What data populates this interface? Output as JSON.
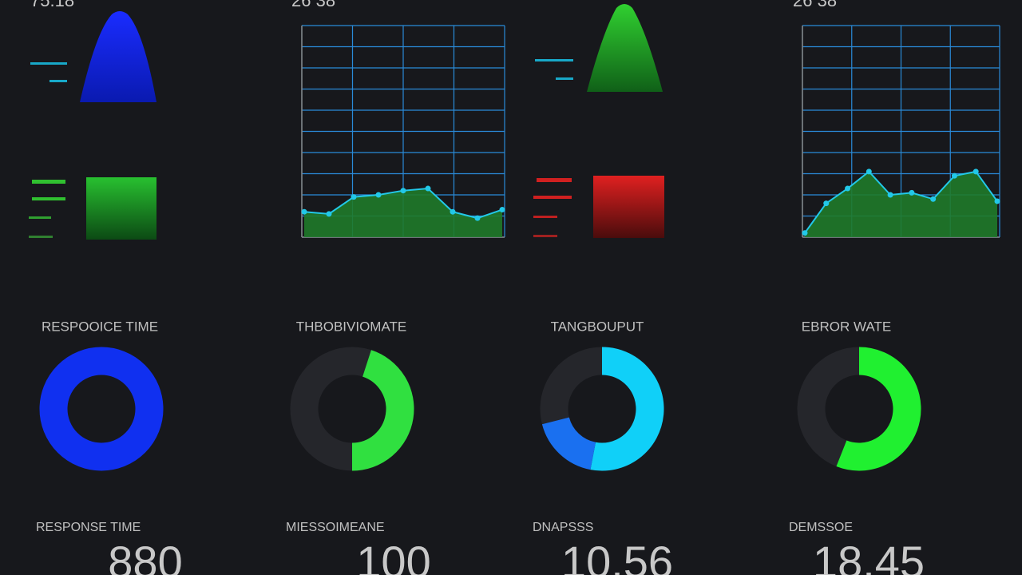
{
  "top_values": [
    "75.18",
    "26 38",
    "26 38"
  ],
  "line_charts": [
    {
      "type": "line",
      "ylim": [
        0,
        10
      ],
      "values": [
        1.2,
        1.1,
        1.9,
        2.0,
        2.2,
        2.3,
        1.2,
        0.9,
        1.3
      ],
      "color": "#22c8e8",
      "fill": "#1f7a2a"
    },
    {
      "type": "line",
      "ylim": [
        0,
        10
      ],
      "values": [
        0.2,
        1.6,
        2.3,
        3.1,
        2.0,
        2.1,
        1.8,
        2.9,
        3.1,
        1.7
      ],
      "color": "#22c8e8",
      "fill": "#1f7a2a"
    }
  ],
  "gauges": [
    {
      "title": "RESPOOICE TIME",
      "segments": [
        {
          "value": 100,
          "color": "#1030f0"
        }
      ]
    },
    {
      "title": "THBOBIVIOMATE",
      "segments": [
        {
          "value": 45,
          "color": "#30e040"
        }
      ]
    },
    {
      "title": "TANGBOUPUT",
      "segments": [
        {
          "value": 53,
          "color": "#10d0f8"
        },
        {
          "value": 18,
          "color": "#1a70f0"
        }
      ]
    },
    {
      "title": "EBROR WATE",
      "segments": [
        {
          "value": 56,
          "color": "#20f030"
        }
      ]
    }
  ],
  "stats": [
    {
      "label": "RESPONSE TIME",
      "value": "880"
    },
    {
      "label": "MIESSOIMEANE",
      "value": "100"
    },
    {
      "label": "DNAPSSS",
      "value": "10.56"
    },
    {
      "label": "DEMSSOE",
      "value": "18.45"
    }
  ]
}
